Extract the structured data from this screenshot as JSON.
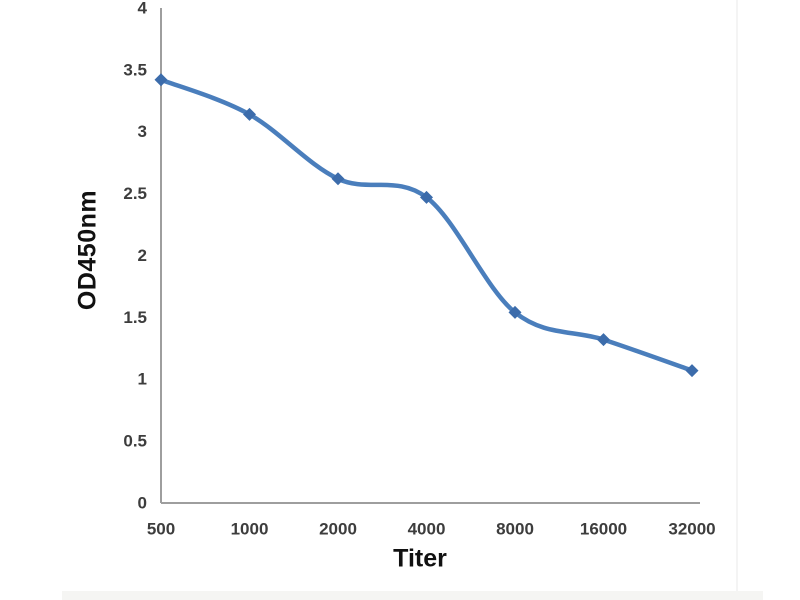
{
  "figure": {
    "background": "#ffffff"
  },
  "chart_data": {
    "type": "line",
    "title": "",
    "xlabel": "Titer",
    "ylabel": "OD450nm",
    "categories": [
      "500",
      "1000",
      "2000",
      "4000",
      "8000",
      "16000",
      "32000"
    ],
    "series": [
      {
        "name": "OD450nm",
        "values": [
          3.42,
          3.14,
          2.62,
          2.47,
          1.54,
          1.32,
          1.07
        ]
      }
    ],
    "ylim": [
      0,
      4
    ],
    "ytick_step": 0.5,
    "ytick_labels": [
      "0",
      "0.5",
      "1",
      "1.5",
      "2",
      "2.5",
      "3",
      "3.5",
      "4"
    ],
    "grid": false,
    "legend": "none",
    "smooth": true,
    "marker": "diamond",
    "colors": {
      "line": "#4a7ebc",
      "marker": "#3c6cab",
      "axis": "#9e9e9e",
      "tick_text": "#3d3d3d",
      "title_text": "#111111"
    }
  }
}
